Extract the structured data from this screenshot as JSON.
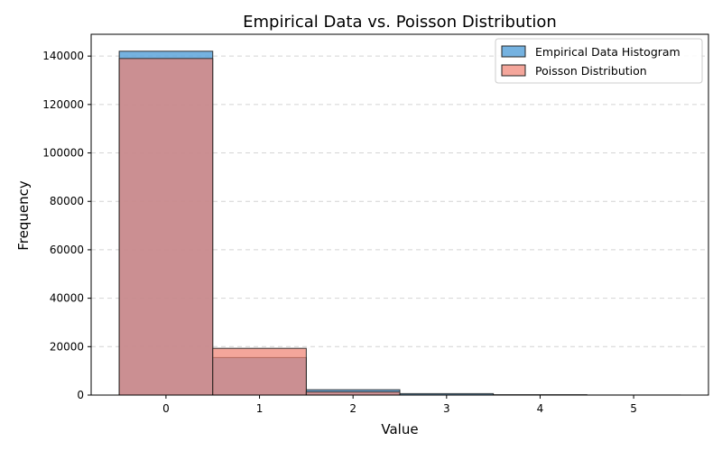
{
  "chart_data": {
    "type": "bar",
    "title": "Empirical Data vs. Poisson Distribution",
    "xlabel": "Value",
    "ylabel": "Frequency",
    "categories": [
      0,
      1,
      2,
      3,
      4,
      5
    ],
    "xlim": [
      -0.8,
      5.8
    ],
    "ylim": [
      0,
      149000
    ],
    "yticks": [
      0,
      20000,
      40000,
      60000,
      80000,
      100000,
      120000,
      140000
    ],
    "grid": "y",
    "legend_position": "top-right",
    "series": [
      {
        "name": "Empirical Data Histogram",
        "color": "#5DA5DA",
        "values": [
          142000,
          15500,
          2200,
          600,
          150,
          30
        ]
      },
      {
        "name": "Poisson Distribution",
        "color": "#F08070",
        "values": [
          139000,
          19300,
          1350,
          60,
          2,
          0
        ]
      }
    ]
  }
}
